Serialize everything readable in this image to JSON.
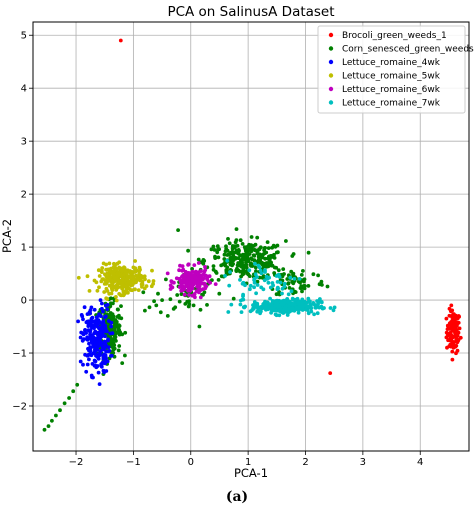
{
  "chart_data": {
    "type": "scatter",
    "title": "PCA on SalinusA Dataset",
    "xlabel": "PCA-1",
    "ylabel": "PCA-2",
    "xlim": [
      -2.75,
      4.85
    ],
    "ylim": [
      -2.85,
      5.25
    ],
    "xticks": [
      -2,
      -1,
      0,
      1,
      2,
      3,
      4
    ],
    "yticks": [
      -2,
      -1,
      0,
      1,
      2,
      3,
      4,
      5
    ],
    "tick_labels": {
      "x": [
        "−2",
        "−1",
        "0",
        "1",
        "2",
        "3",
        "4"
      ],
      "y": [
        "−2",
        "−1",
        "0",
        "1",
        "2",
        "3",
        "4",
        "5"
      ]
    },
    "grid": true,
    "legend_position": "top-right",
    "series": [
      {
        "name": "Brocoli_green_weeds_1",
        "color": "#ff0000",
        "points": [
          [
            -1.22,
            4.9
          ],
          [
            2.43,
            -1.38
          ]
        ],
        "clusters": [
          {
            "cx": 4.58,
            "cy": -0.6,
            "sx": 0.06,
            "sy": 0.2,
            "n": 110
          }
        ]
      },
      {
        "name": "Corn_senesced_green_weeds",
        "color": "#008000",
        "points": [
          [
            -2.55,
            -2.45
          ],
          [
            -2.48,
            -2.38
          ],
          [
            -2.42,
            -2.28
          ],
          [
            -2.35,
            -2.18
          ],
          [
            -2.28,
            -2.08
          ],
          [
            -2.2,
            -1.95
          ],
          [
            -2.12,
            -1.85
          ],
          [
            -2.05,
            -1.72
          ],
          [
            -1.98,
            -1.6
          ],
          [
            -0.22,
            1.32
          ],
          [
            0.15,
            -0.5
          ],
          [
            0.05,
            -0.1
          ],
          [
            -0.6,
            -0.1
          ],
          [
            -0.4,
            -0.3
          ],
          [
            -0.8,
            -0.2
          ],
          [
            -0.5,
            0.0
          ]
        ],
        "clusters": [
          {
            "cx": -1.42,
            "cy": -0.55,
            "sx": 0.1,
            "sy": 0.25,
            "n": 220
          },
          {
            "cx": 0.95,
            "cy": 0.75,
            "sx": 0.35,
            "sy": 0.18,
            "n": 280
          },
          {
            "cx": 1.85,
            "cy": 0.35,
            "sx": 0.25,
            "sy": 0.15,
            "n": 60
          },
          {
            "cx": -0.1,
            "cy": 0.1,
            "sx": 0.25,
            "sy": 0.2,
            "n": 40
          }
        ]
      },
      {
        "name": "Lettuce_romaine_4wk",
        "color": "#0000ff",
        "points": [],
        "clusters": [
          {
            "cx": -1.65,
            "cy": -0.75,
            "sx": 0.12,
            "sy": 0.32,
            "n": 240
          }
        ]
      },
      {
        "name": "Lettuce_romaine_5wk",
        "color": "#bfbf00",
        "points": [],
        "clusters": [
          {
            "cx": -1.2,
            "cy": 0.4,
            "sx": 0.2,
            "sy": 0.13,
            "n": 280
          }
        ]
      },
      {
        "name": "Lettuce_romaine_6wk",
        "color": "#bf00bf",
        "points": [],
        "clusters": [
          {
            "cx": 0.02,
            "cy": 0.35,
            "sx": 0.14,
            "sy": 0.12,
            "n": 200
          }
        ]
      },
      {
        "name": "Lettuce_romaine_7wk",
        "color": "#00bfbf",
        "points": [],
        "clusters": [
          {
            "cx": 1.65,
            "cy": -0.12,
            "sx": 0.3,
            "sy": 0.07,
            "n": 280
          },
          {
            "cx": 1.3,
            "cy": 0.35,
            "sx": 0.35,
            "sy": 0.2,
            "n": 60
          }
        ]
      }
    ]
  },
  "caption": "(a)"
}
